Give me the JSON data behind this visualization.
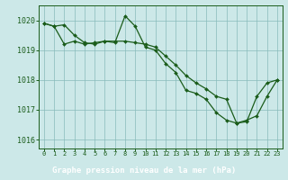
{
  "title": "Graphe pression niveau de la mer (hPa)",
  "bg_color": "#cce8e8",
  "grid_color": "#88bbbb",
  "line_color": "#1a5c1a",
  "label_bar_color": "#1a5c1a",
  "label_text_color": "#ffffff",
  "xlim": [
    -0.5,
    23.5
  ],
  "ylim": [
    1015.7,
    1020.5
  ],
  "yticks": [
    1016,
    1017,
    1018,
    1019,
    1020
  ],
  "xticks": [
    0,
    1,
    2,
    3,
    4,
    5,
    6,
    7,
    8,
    9,
    10,
    11,
    12,
    13,
    14,
    15,
    16,
    17,
    18,
    19,
    20,
    21,
    22,
    23
  ],
  "series1_x": [
    0,
    1,
    2,
    3,
    4,
    5,
    6,
    7,
    8,
    9,
    10,
    11,
    12,
    13,
    14,
    15,
    16,
    17,
    18,
    19,
    20,
    21,
    22,
    23
  ],
  "series1_y": [
    1019.9,
    1019.8,
    1019.85,
    1019.5,
    1019.25,
    1019.2,
    1019.3,
    1019.3,
    1019.3,
    1019.25,
    1019.2,
    1019.1,
    1018.8,
    1018.5,
    1018.15,
    1017.9,
    1017.7,
    1017.45,
    1017.35,
    1016.55,
    1016.65,
    1016.8,
    1017.45,
    1018.0
  ],
  "series2_x": [
    0,
    1,
    2,
    3,
    4,
    5,
    6,
    7,
    8,
    9,
    10,
    11,
    12,
    13,
    14,
    15,
    16,
    17,
    18,
    19,
    20,
    21,
    22,
    23
  ],
  "series2_y": [
    1019.9,
    1019.8,
    1019.2,
    1019.3,
    1019.2,
    1019.25,
    1019.3,
    1019.25,
    1020.15,
    1019.8,
    1019.1,
    1019.0,
    1018.55,
    1018.25,
    1017.65,
    1017.55,
    1017.35,
    1016.9,
    1016.65,
    1016.55,
    1016.6,
    1017.45,
    1017.9,
    1018.0
  ]
}
